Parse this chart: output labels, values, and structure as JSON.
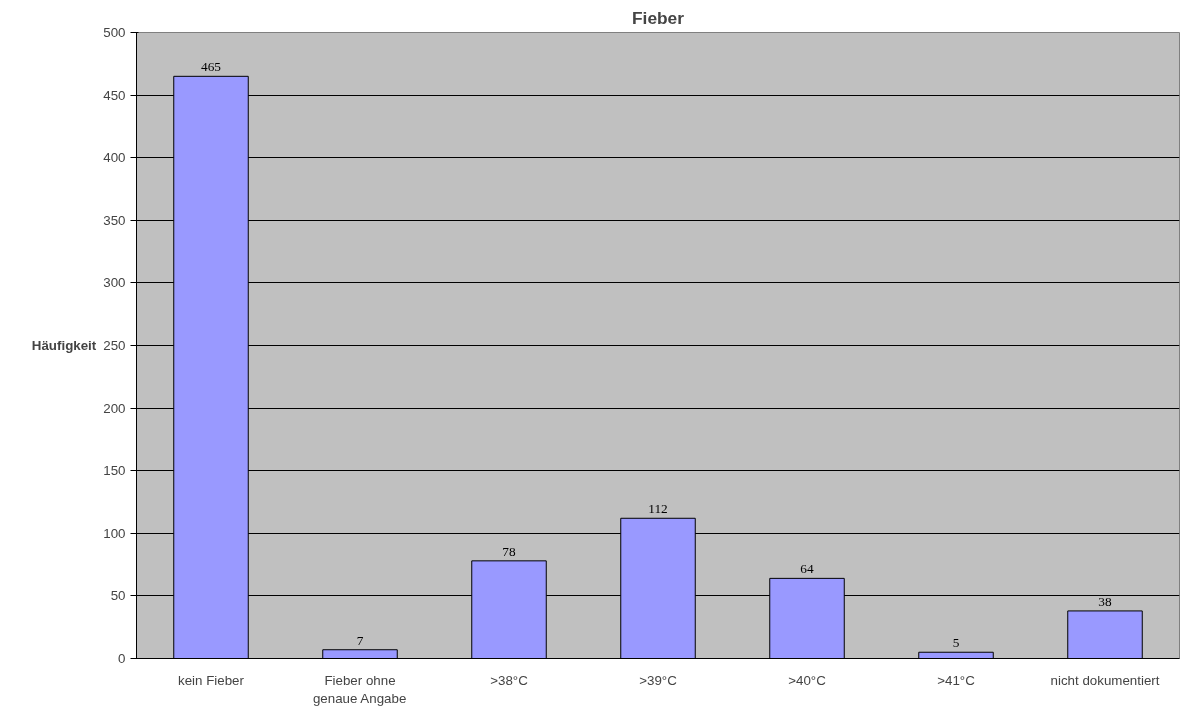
{
  "chart_data": {
    "type": "bar",
    "title": "Fieber",
    "ylabel": "Häufigkeit",
    "categories": [
      "kein Fieber",
      "Fieber ohne genaue Angabe",
      ">38°C",
      ">39°C",
      ">40°C",
      ">41°C",
      "nicht dokumentiert"
    ],
    "values": [
      465,
      7,
      78,
      112,
      64,
      5,
      38
    ],
    "color": "#9999ff",
    "ylim": [
      0,
      500
    ],
    "yticks": [
      0,
      50,
      100,
      150,
      200,
      250,
      300,
      350,
      400,
      450,
      500
    ],
    "grid": "y",
    "data_labels": true
  }
}
